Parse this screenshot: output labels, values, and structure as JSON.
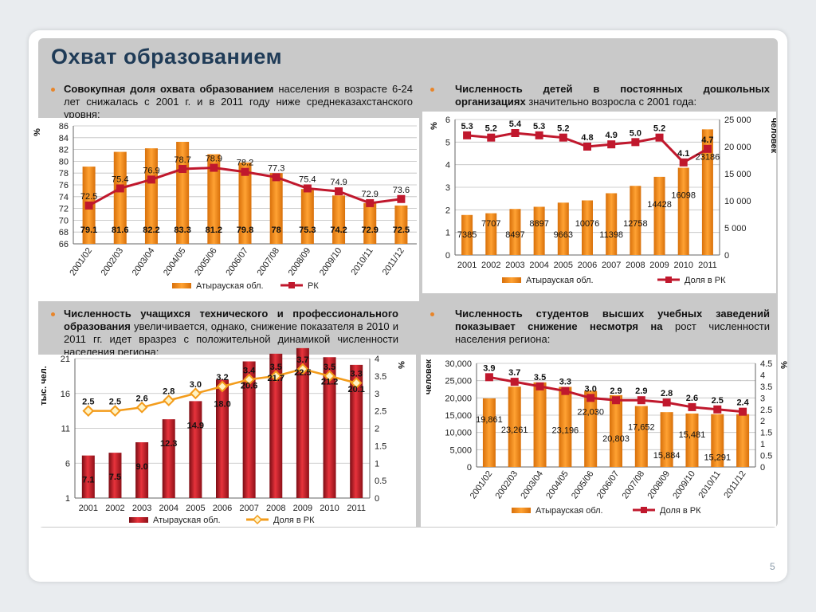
{
  "title": "Охват образованием",
  "page_number": "5",
  "colors": {
    "orange_bar": "#f08a0c",
    "line_red": "#c0182d",
    "red_bar": "#c8202a",
    "orange_line": "#f39c1b",
    "bullet": "#e8852a",
    "title": "#1f3b57"
  },
  "text1": {
    "lead": "Совокупная доля охвата образованием",
    "rest": " населения в возрасте 6-24 лет снижалась с 2001 г. и в 2011 году ниже среднеказахстанского уровня:"
  },
  "text2": {
    "lead": "Численность детей в постоянных дошкольных организациях",
    "rest": " значительно возросла с 2001 года:"
  },
  "text3": {
    "lead": "Численность учащихся технического и профессионального образования",
    "rest": " увеличивается, однако, снижение показателя в 2010 и 2011 гг. идет вразрез с положительной динамикой численности населения региона:"
  },
  "text4": {
    "lead": "Численность студентов высших учебных заведений показывает снижение несмотря на",
    "rest": " рост численности населения региона:"
  },
  "chart_data": [
    {
      "type": "bar",
      "categories": [
        "2001/02",
        "2002/03",
        "2003/04",
        "2004/05",
        "2005/06",
        "2006/07",
        "2007/08",
        "2008/09",
        "2009/10",
        "2010/11",
        "2011/12"
      ],
      "ylabel": "%",
      "ylim": [
        66,
        86
      ],
      "yticks": [
        "66",
        "68",
        "70",
        "72",
        "74",
        "76",
        "78",
        "80",
        "82",
        "84",
        "86"
      ],
      "series": [
        {
          "name": "Атырауская обл.",
          "kind": "bar",
          "values": [
            79.1,
            81.6,
            82.2,
            83.3,
            81.2,
            79.8,
            78,
            75.3,
            74.2,
            72.9,
            72.5
          ],
          "labels": [
            "79.1",
            "81.6",
            "82.2",
            "83.3",
            "81.2",
            "79.8",
            "78",
            "75.3",
            "74.2",
            "72.9",
            "72.5"
          ]
        },
        {
          "name": "РК",
          "kind": "line",
          "values": [
            72.5,
            75.4,
            76.9,
            78.7,
            78.9,
            78.2,
            77.3,
            75.4,
            74.9,
            72.9,
            73.6
          ],
          "labels": [
            "72.5",
            "75.4",
            "76.9",
            "78.7",
            "78.9",
            "78.2",
            "77.3",
            "75.4",
            "74.9",
            "72.9",
            "73.6"
          ]
        }
      ],
      "grid": true,
      "legend": "bottom"
    },
    {
      "type": "bar",
      "categories": [
        "2001",
        "2002",
        "2003",
        "2004",
        "2005",
        "2006",
        "2007",
        "2008",
        "2009",
        "2010",
        "2011"
      ],
      "ylabel": "%",
      "y2label": "человек",
      "ylim": [
        0,
        6
      ],
      "y2lim": [
        0,
        25000
      ],
      "yticks": [
        "0",
        "1",
        "2",
        "3",
        "4",
        "5",
        "6"
      ],
      "y2ticks": [
        "0",
        "5 000",
        "10 000",
        "15 000",
        "20 000",
        "25 000"
      ],
      "series": [
        {
          "name": "Атырауская обл.",
          "kind": "bar",
          "axis": "right",
          "values": [
            7385,
            7707,
            8497,
            8897,
            9663,
            10076,
            11398,
            12758,
            14428,
            16098,
            23186
          ],
          "labels": [
            "7385",
            "7707",
            "8497",
            "8897",
            "9663",
            "10076",
            "11398",
            "12758",
            "14428",
            "16098",
            "23186"
          ]
        },
        {
          "name": "Доля в РК",
          "kind": "line",
          "axis": "left",
          "values": [
            5.3,
            5.2,
            5.4,
            5.3,
            5.2,
            4.8,
            4.9,
            5.0,
            5.2,
            4.1,
            4.7
          ],
          "labels": [
            "5.3",
            "5.2",
            "5.4",
            "5.3",
            "5.2",
            "4.8",
            "4.9",
            "5.0",
            "5.2",
            "4.1",
            "4.7"
          ]
        }
      ],
      "grid": true,
      "legend": "bottom"
    },
    {
      "type": "bar",
      "categories": [
        "2001",
        "2002",
        "2003",
        "2004",
        "2005",
        "2006",
        "2007",
        "2008",
        "2009",
        "2010",
        "2011"
      ],
      "ylabel": "тыс. чел.",
      "y2label": "%",
      "ylim": [
        1,
        21
      ],
      "y2lim": [
        0,
        4
      ],
      "yticks": [
        "1",
        "6",
        "11",
        "16",
        "21"
      ],
      "y2ticks": [
        "0",
        "0.5",
        "1",
        "1.5",
        "2",
        "2.5",
        "3",
        "3.5",
        "4"
      ],
      "series": [
        {
          "name": "Атырауская обл.",
          "kind": "bar",
          "axis": "left",
          "values": [
            7.1,
            7.5,
            9.0,
            12.3,
            14.9,
            18.0,
            20.6,
            21.7,
            22.5,
            21.2,
            20.1
          ],
          "labels": [
            "7.1",
            "7.5",
            "9.0",
            "12.3",
            "14.9",
            "18.0",
            "20.6",
            "21.7",
            "22.5",
            "21.2",
            "20.1"
          ]
        },
        {
          "name": "Доля в РК",
          "kind": "line",
          "axis": "right",
          "values": [
            2.5,
            2.5,
            2.6,
            2.8,
            3.0,
            3.2,
            3.4,
            3.5,
            3.7,
            3.5,
            3.3
          ],
          "labels": [
            "2.5",
            "2.5",
            "2.6",
            "2.8",
            "3.0",
            "3.2",
            "3.4",
            "3.5",
            "3.7",
            "3.5",
            "3.3"
          ]
        }
      ],
      "grid": true,
      "legend": "bottom"
    },
    {
      "type": "bar",
      "categories": [
        "2001/02",
        "2002/03",
        "2003/04",
        "2004/05",
        "2005/06",
        "2006/07",
        "2007/08",
        "2008/09",
        "2009/10",
        "2010/11",
        "2011/12"
      ],
      "ylabel": "человек",
      "y2label": "%",
      "ylim": [
        0,
        30000
      ],
      "y2lim": [
        0,
        4.5
      ],
      "yticks": [
        "0",
        "5,000",
        "10,000",
        "15,000",
        "20,000",
        "25,000",
        "30,000"
      ],
      "y2ticks": [
        "0",
        "0.5",
        "1",
        "1.5",
        "2",
        "2.5",
        "3",
        "3.5",
        "4",
        "4.5"
      ],
      "series": [
        {
          "name": "Атырауская обл.",
          "kind": "bar",
          "axis": "left",
          "values": [
            19861,
            23261,
            24500,
            23196,
            22030,
            20803,
            17652,
            15884,
            15481,
            15291,
            15291
          ],
          "labels": [
            "19,861",
            "23,261",
            "",
            "23,196",
            "22,030",
            "20,803",
            "17,652",
            "15,884",
            "15,481",
            "15,291",
            ""
          ]
        },
        {
          "name": "Доля в РК",
          "kind": "line",
          "axis": "right",
          "values": [
            3.9,
            3.7,
            3.5,
            3.3,
            3.0,
            2.9,
            2.9,
            2.8,
            2.6,
            2.5,
            2.4
          ],
          "labels": [
            "3.9",
            "3.7",
            "3.5",
            "3.3",
            "3.0",
            "2.9",
            "2.9",
            "2.8",
            "2.6",
            "2.5",
            "2.4"
          ]
        }
      ],
      "grid": true,
      "legend": "bottom"
    }
  ]
}
